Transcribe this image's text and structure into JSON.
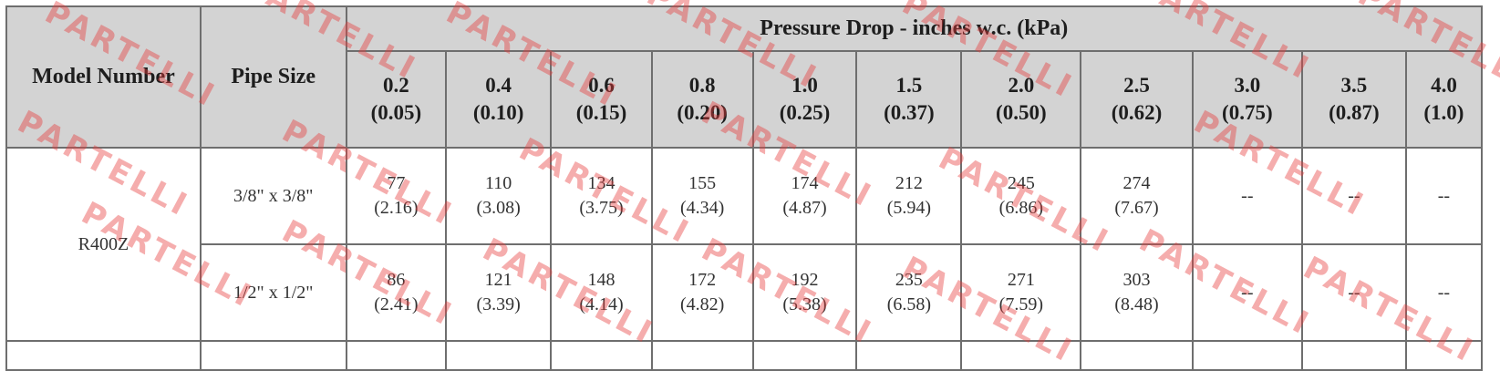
{
  "table": {
    "model_header": "Model Number",
    "pipe_header": "Pipe Size",
    "group_header": "Pressure Drop - inches w.c. (kPa)",
    "columns": [
      {
        "inwc": "0.2",
        "kpa": "(0.05)"
      },
      {
        "inwc": "0.4",
        "kpa": "(0.10)"
      },
      {
        "inwc": "0.6",
        "kpa": "(0.15)"
      },
      {
        "inwc": "0.8",
        "kpa": "(0.20)"
      },
      {
        "inwc": "1.0",
        "kpa": "(0.25)"
      },
      {
        "inwc": "1.5",
        "kpa": "(0.37)"
      },
      {
        "inwc": "2.0",
        "kpa": "(0.50)"
      },
      {
        "inwc": "2.5",
        "kpa": "(0.62)"
      },
      {
        "inwc": "3.0",
        "kpa": "(0.75)"
      },
      {
        "inwc": "3.5",
        "kpa": "(0.87)"
      },
      {
        "inwc": "4.0",
        "kpa": "(1.0)"
      }
    ],
    "model": "R400Z",
    "rows": [
      {
        "pipe": "3/8\" x 3/8\"",
        "cells": [
          {
            "main": "77",
            "sub": "(2.16)"
          },
          {
            "main": "110",
            "sub": "(3.08)"
          },
          {
            "main": "134",
            "sub": "(3.75)"
          },
          {
            "main": "155",
            "sub": "(4.34)"
          },
          {
            "main": "174",
            "sub": "(4.87)"
          },
          {
            "main": "212",
            "sub": "(5.94)"
          },
          {
            "main": "245",
            "sub": "(6.86)"
          },
          {
            "main": "274",
            "sub": "(7.67)"
          },
          {
            "main": "--",
            "sub": ""
          },
          {
            "main": "--",
            "sub": ""
          },
          {
            "main": "--",
            "sub": ""
          }
        ]
      },
      {
        "pipe": "1/2\" x 1/2\"",
        "cells": [
          {
            "main": "86",
            "sub": "(2.41)"
          },
          {
            "main": "121",
            "sub": "(3.39)"
          },
          {
            "main": "148",
            "sub": "(4.14)"
          },
          {
            "main": "172",
            "sub": "(4.82)"
          },
          {
            "main": "192",
            "sub": "(5.38)"
          },
          {
            "main": "235",
            "sub": "(6.58)"
          },
          {
            "main": "271",
            "sub": "(7.59)"
          },
          {
            "main": "303",
            "sub": "(8.48)"
          },
          {
            "main": "--",
            "sub": ""
          },
          {
            "main": "--",
            "sub": ""
          },
          {
            "main": "--",
            "sub": ""
          }
        ]
      }
    ]
  },
  "watermark": {
    "text": "PARTELLI",
    "color": "#e63c3c"
  }
}
